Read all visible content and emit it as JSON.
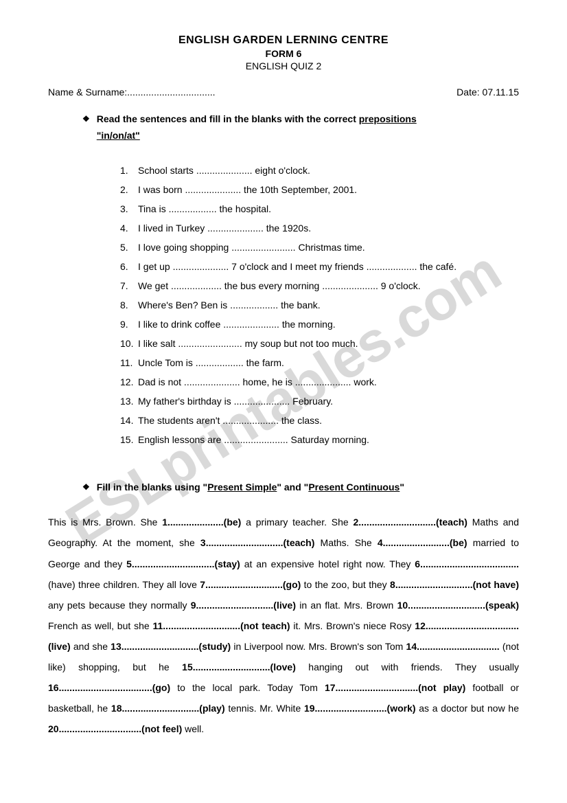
{
  "header": {
    "title": "ENGLISH GARDEN LERNING CENTRE",
    "form": "FORM 6",
    "quiz": "ENGLISH QUIZ 2"
  },
  "meta": {
    "name_label": "Name & Surname:",
    "name_dots": ".................................",
    "date_label": "Date:",
    "date_value": "07.11.15"
  },
  "watermark": "ESLprintables.com",
  "section1": {
    "bullet": "❖",
    "instr_pre": "Read the sentences and fill in the blanks with the correct ",
    "instr_u1": "prepositions",
    "instr_u2": "\"in/on/at\"",
    "items": [
      {
        "n": "1.",
        "t": "School starts ..................... eight o'clock."
      },
      {
        "n": "2.",
        "t": "I was born ..................... the 10th September, 2001."
      },
      {
        "n": "3.",
        "t": "Tina is .................. the hospital."
      },
      {
        "n": "4.",
        "t": "I lived in Turkey ..................... the 1920s."
      },
      {
        "n": "5.",
        "t": "I love going shopping ........................ Christmas time."
      },
      {
        "n": "6.",
        "t": "I get up ..................... 7 o'clock and I meet my friends ................... the café."
      },
      {
        "n": "7.",
        "t": "We get ................... the bus every morning ..................... 9 o'clock."
      },
      {
        "n": "8.",
        "t": "Where's Ben? Ben is .................. the bank."
      },
      {
        "n": "9.",
        "t": "I like to drink coffee ..................... the morning."
      },
      {
        "n": "10.",
        "t": "I like salt ........................ my soup but not too much."
      },
      {
        "n": "11.",
        "t": "Uncle Tom is .................. the farm."
      },
      {
        "n": "12.",
        "t": "Dad is not ..................... home, he is ..................... work."
      },
      {
        "n": "13.",
        "t": "My father's birthday is ..................... February."
      },
      {
        "n": "14.",
        "t": "The students aren't ..................... the class."
      },
      {
        "n": "15.",
        "t": "English lessons are ........................ Saturday morning."
      }
    ]
  },
  "section2": {
    "bullet": "❖",
    "instr_pre": "Fill in the blanks using \"",
    "instr_u1": "Present Simple",
    "instr_mid": "\" and \"",
    "instr_u2": "Present Continuous",
    "instr_post": "\"",
    "paragraph_parts": [
      {
        "t": "This is Mrs. Brown. She "
      },
      {
        "t": "1.....................(be)",
        "b": true
      },
      {
        "t": " a primary teacher. She "
      },
      {
        "t": "2.............................(teach)",
        "b": true
      },
      {
        "t": " Maths and Geography. At the moment, she "
      },
      {
        "t": "3.............................(teach)",
        "b": true
      },
      {
        "t": " Maths. She "
      },
      {
        "t": "4.........................(be)",
        "b": true
      },
      {
        "t": " married to George and they "
      },
      {
        "t": "5...............................(stay)",
        "b": true
      },
      {
        "t": " at an expensive hotel right now. They "
      },
      {
        "t": "6.....................................",
        "b": true
      },
      {
        "t": " (have) three children. They all love "
      },
      {
        "t": "7.............................(go)",
        "b": true
      },
      {
        "t": " to the zoo, but they "
      },
      {
        "t": "8.............................(not have)",
        "b": true
      },
      {
        "t": " any pets because they normally "
      },
      {
        "t": "9.............................(live)",
        "b": true
      },
      {
        "t": " in an flat. Mrs. Brown "
      },
      {
        "t": "10.............................(speak)",
        "b": true
      },
      {
        "t": " French as well, but she "
      },
      {
        "t": "11.............................(not teach)",
        "b": true
      },
      {
        "t": " it. Mrs. Brown's niece Rosy "
      },
      {
        "t": "12...................................(live)",
        "b": true
      },
      {
        "t": " and she "
      },
      {
        "t": "13.............................(study)",
        "b": true
      },
      {
        "t": " in Liverpool now. Mrs. Brown's son Tom "
      },
      {
        "t": "14...............................",
        "b": true
      },
      {
        "t": " (not like) shopping, but he "
      },
      {
        "t": "15.............................(love)",
        "b": true
      },
      {
        "t": " hanging out with friends. They usually "
      },
      {
        "t": "16...................................(go)",
        "b": true
      },
      {
        "t": " to the local park. Today Tom "
      },
      {
        "t": "17...............................(not play)",
        "b": true
      },
      {
        "t": " football or basketball, he "
      },
      {
        "t": "18.............................(play)",
        "b": true
      },
      {
        "t": " tennis. Mr. White "
      },
      {
        "t": "19...........................(work)",
        "b": true
      },
      {
        "t": " as a doctor but now he "
      },
      {
        "t": "20...............................(not feel)",
        "b": true
      },
      {
        "t": " well."
      }
    ]
  }
}
